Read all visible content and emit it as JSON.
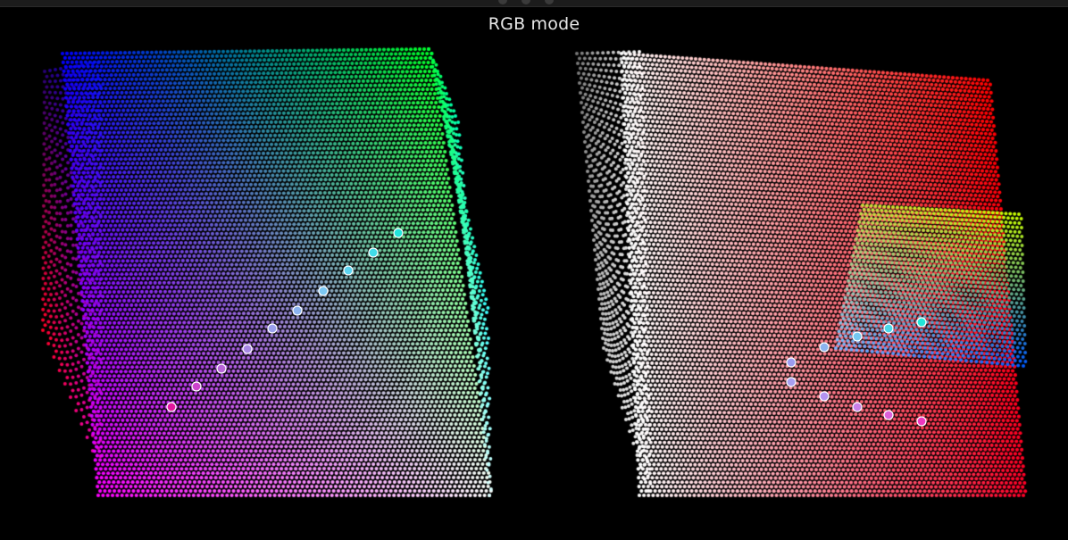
{
  "window": {
    "mode_label": "RGB mode"
  },
  "views": [
    {
      "name": "left-cube-view",
      "samples": [
        {
          "color": "#e0189c"
        },
        {
          "color": "#cc44cc"
        },
        {
          "color": "#b866d8"
        },
        {
          "color": "#a888e4"
        },
        {
          "color": "#9aa0ec"
        },
        {
          "color": "#8cb4f0"
        },
        {
          "color": "#7cc8f4"
        },
        {
          "color": "#5cd4f0"
        },
        {
          "color": "#40dce8"
        },
        {
          "color": "#22e4dc"
        }
      ]
    },
    {
      "name": "right-cube-view",
      "samples": [
        {
          "color": "#9c9cf0"
        },
        {
          "color": "#8cb4f0"
        },
        {
          "color": "#74c8f0"
        },
        {
          "color": "#4cd8e8"
        },
        {
          "color": "#22e4d8"
        },
        {
          "color": "#a8a0f0"
        },
        {
          "color": "#b494f0"
        },
        {
          "color": "#c880e8"
        },
        {
          "color": "#dc60d8"
        },
        {
          "color": "#ec38c0"
        }
      ]
    }
  ],
  "colors": {
    "background": "#000000",
    "titlebar": "#1c1c1c",
    "title_text": "#e8e8e8",
    "marker_outline": "#ffffff"
  }
}
